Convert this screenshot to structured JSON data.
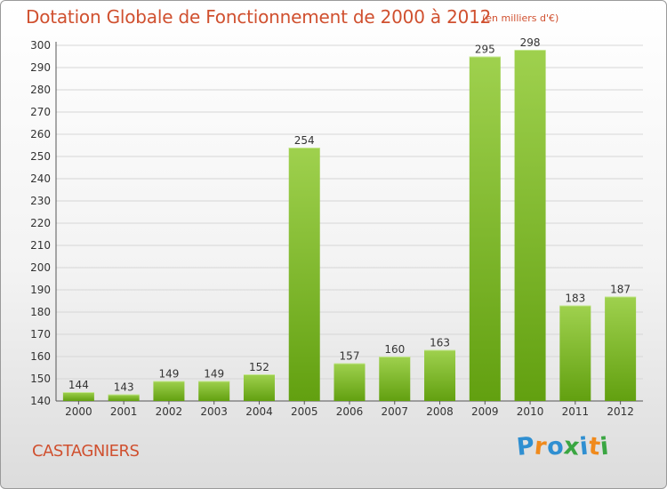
{
  "title": "Dotation Globale de Fonctionnement de 2000 à 2012",
  "subtitle": "(en milliers d'€)",
  "commune": "CASTAGNIERS",
  "logo": {
    "text": "Proxiti",
    "letters": [
      {
        "ch": "P",
        "color": "#2f8fd1"
      },
      {
        "ch": "r",
        "color": "#f08a1c"
      },
      {
        "ch": "o",
        "color": "#2f8fd1"
      },
      {
        "ch": "x",
        "color": "#3aa642"
      },
      {
        "ch": "i",
        "color": "#2f8fd1"
      },
      {
        "ch": "t",
        "color": "#f08a1c"
      },
      {
        "ch": "i",
        "color": "#3aa642"
      }
    ]
  },
  "colors": {
    "bar_top": "#9fd14e",
    "bar_bottom": "#62a010",
    "text": "#d0502f",
    "grid": "#d6d6d6"
  },
  "chart_data": {
    "type": "bar",
    "title": "Dotation Globale de Fonctionnement de 2000 à 2012",
    "subtitle": "(en milliers d'€)",
    "categories": [
      "2000",
      "2001",
      "2002",
      "2003",
      "2004",
      "2005",
      "2006",
      "2007",
      "2008",
      "2009",
      "2010",
      "2011",
      "2012"
    ],
    "values": [
      144,
      143,
      149,
      149,
      152,
      254,
      157,
      160,
      163,
      295,
      298,
      183,
      187
    ],
    "ylim": [
      140,
      300
    ],
    "yticks": [
      140,
      150,
      160,
      170,
      180,
      190,
      200,
      210,
      220,
      230,
      240,
      250,
      260,
      270,
      280,
      290,
      300
    ],
    "grid": true,
    "data_labels": true
  }
}
